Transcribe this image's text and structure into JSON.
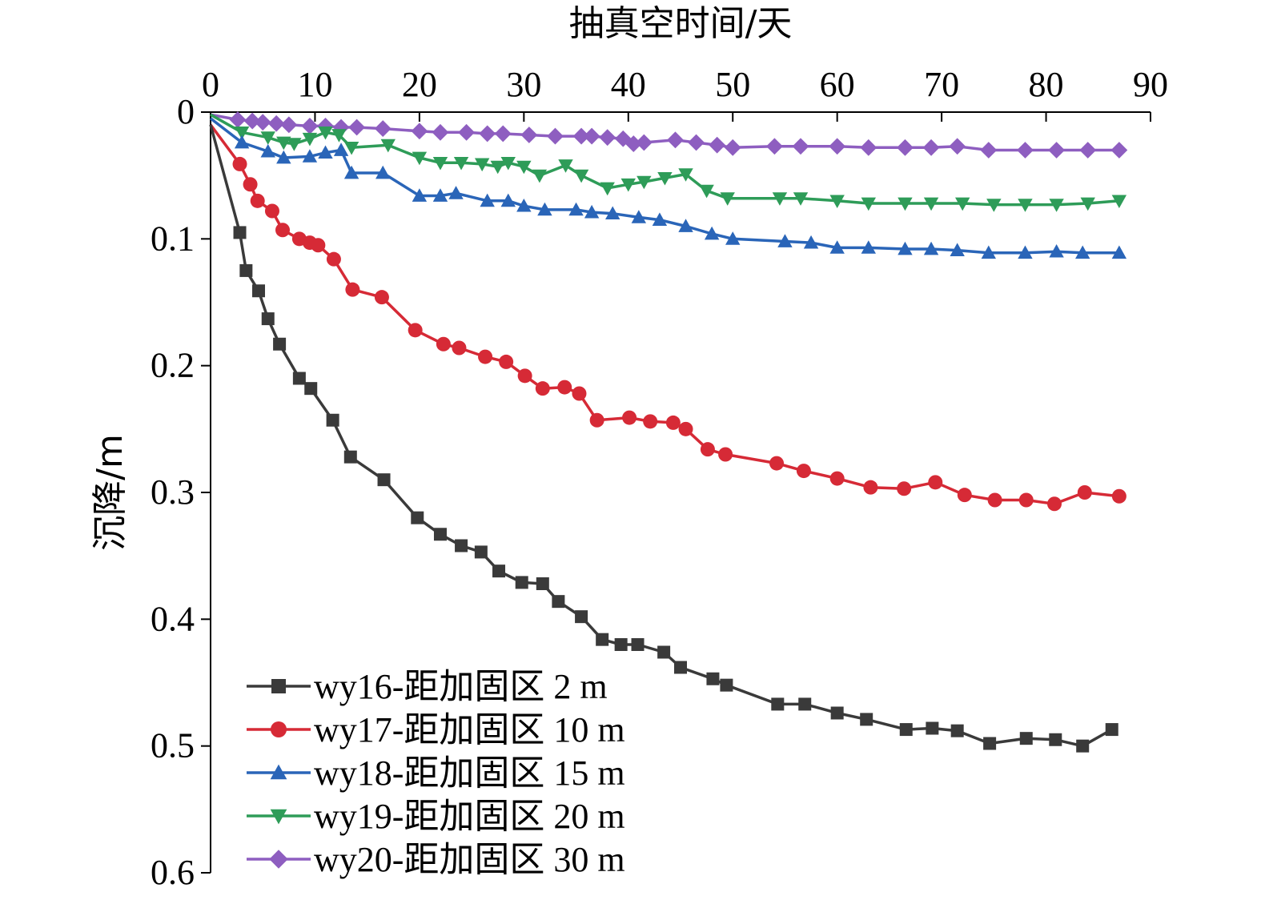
{
  "chart_data": {
    "type": "line",
    "xlabel": "抽真空时间/天",
    "ylabel": "沉降/m",
    "xlim": [
      0,
      90
    ],
    "ylim": [
      0,
      0.6
    ],
    "x_ticks": [
      0,
      10,
      20,
      30,
      40,
      50,
      60,
      70,
      80,
      90
    ],
    "y_ticks": [
      0,
      0.1,
      0.2,
      0.3,
      0.4,
      0.5,
      0.6
    ],
    "y_tick_labels": [
      "0",
      "0.1",
      "0.2",
      "0.3",
      "0.4",
      "0.5",
      "0.6"
    ],
    "x_axis_position": "top",
    "y_axis_inverted": true,
    "grid": false,
    "legend_position": "bottom-left",
    "series": [
      {
        "name": "wy16-距加固区 2 m",
        "color": "#3a3a3a",
        "marker": "square",
        "points": [
          [
            0,
            0.01
          ],
          [
            2.8,
            0.095
          ],
          [
            3.4,
            0.125
          ],
          [
            4.6,
            0.141
          ],
          [
            5.5,
            0.163
          ],
          [
            6.6,
            0.183
          ],
          [
            8.5,
            0.21
          ],
          [
            9.6,
            0.218
          ],
          [
            11.7,
            0.243
          ],
          [
            13.4,
            0.272
          ],
          [
            16.6,
            0.29
          ],
          [
            19.8,
            0.32
          ],
          [
            22,
            0.333
          ],
          [
            24,
            0.342
          ],
          [
            25.9,
            0.347
          ],
          [
            27.6,
            0.362
          ],
          [
            29.8,
            0.371
          ],
          [
            31.8,
            0.372
          ],
          [
            33.3,
            0.386
          ],
          [
            35.5,
            0.398
          ],
          [
            37.5,
            0.416
          ],
          [
            39.3,
            0.42
          ],
          [
            40.9,
            0.42
          ],
          [
            43.4,
            0.426
          ],
          [
            45,
            0.438
          ],
          [
            48.1,
            0.447
          ],
          [
            49.4,
            0.452
          ],
          [
            54.3,
            0.467
          ],
          [
            56.9,
            0.467
          ],
          [
            60,
            0.474
          ],
          [
            62.8,
            0.479
          ],
          [
            66.6,
            0.487
          ],
          [
            69.1,
            0.486
          ],
          [
            71.5,
            0.488
          ],
          [
            74.6,
            0.498
          ],
          [
            78.1,
            0.494
          ],
          [
            80.9,
            0.495
          ],
          [
            83.5,
            0.5
          ],
          [
            86.3,
            0.487
          ]
        ]
      },
      {
        "name": "wy17-距加固区 10 m",
        "color": "#d62a36",
        "marker": "circle",
        "points": [
          [
            0,
            0.01
          ],
          [
            2.8,
            0.041
          ],
          [
            3.8,
            0.057
          ],
          [
            4.5,
            0.07
          ],
          [
            5.9,
            0.078
          ],
          [
            6.9,
            0.093
          ],
          [
            8.5,
            0.1
          ],
          [
            9.5,
            0.103
          ],
          [
            10.3,
            0.105
          ],
          [
            11.8,
            0.116
          ],
          [
            13.6,
            0.14
          ],
          [
            16.4,
            0.146
          ],
          [
            19.6,
            0.172
          ],
          [
            22.3,
            0.183
          ],
          [
            23.8,
            0.186
          ],
          [
            26.3,
            0.193
          ],
          [
            28.3,
            0.197
          ],
          [
            30.1,
            0.208
          ],
          [
            31.8,
            0.218
          ],
          [
            33.9,
            0.217
          ],
          [
            35.3,
            0.222
          ],
          [
            37,
            0.243
          ],
          [
            40.1,
            0.241
          ],
          [
            42.1,
            0.244
          ],
          [
            44.3,
            0.245
          ],
          [
            45.5,
            0.25
          ],
          [
            47.6,
            0.266
          ],
          [
            49.3,
            0.27
          ],
          [
            54.2,
            0.277
          ],
          [
            56.8,
            0.283
          ],
          [
            60,
            0.289
          ],
          [
            63.2,
            0.296
          ],
          [
            66.4,
            0.297
          ],
          [
            69.4,
            0.292
          ],
          [
            72.2,
            0.302
          ],
          [
            75.1,
            0.306
          ],
          [
            78.1,
            0.306
          ],
          [
            80.8,
            0.309
          ],
          [
            83.7,
            0.3
          ],
          [
            87,
            0.303
          ]
        ]
      },
      {
        "name": "wy18-距加固区 15 m",
        "color": "#2a65b8",
        "marker": "triangle-up",
        "points": [
          [
            0,
            0.005
          ],
          [
            3,
            0.024
          ],
          [
            5.5,
            0.031
          ],
          [
            7,
            0.036
          ],
          [
            9.5,
            0.035
          ],
          [
            11,
            0.032
          ],
          [
            12.5,
            0.03
          ],
          [
            13.5,
            0.048
          ],
          [
            16.5,
            0.048
          ],
          [
            20,
            0.066
          ],
          [
            22,
            0.066
          ],
          [
            23.5,
            0.064
          ],
          [
            26.5,
            0.07
          ],
          [
            28.5,
            0.07
          ],
          [
            30,
            0.074
          ],
          [
            32,
            0.077
          ],
          [
            35,
            0.077
          ],
          [
            36.5,
            0.079
          ],
          [
            38.5,
            0.08
          ],
          [
            41,
            0.083
          ],
          [
            43,
            0.085
          ],
          [
            45.5,
            0.09
          ],
          [
            48,
            0.096
          ],
          [
            50,
            0.1
          ],
          [
            55,
            0.102
          ],
          [
            57.5,
            0.103
          ],
          [
            60,
            0.107
          ],
          [
            63,
            0.107
          ],
          [
            66.5,
            0.108
          ],
          [
            69,
            0.108
          ],
          [
            71.5,
            0.109
          ],
          [
            74.5,
            0.111
          ],
          [
            78,
            0.111
          ],
          [
            81,
            0.11
          ],
          [
            83.5,
            0.111
          ],
          [
            87,
            0.111
          ]
        ]
      },
      {
        "name": "wy19-距加固区 20 m",
        "color": "#2e9c58",
        "marker": "triangle-down",
        "points": [
          [
            0,
            0.002
          ],
          [
            3,
            0.016
          ],
          [
            5.5,
            0.02
          ],
          [
            7,
            0.024
          ],
          [
            8,
            0.025
          ],
          [
            9.5,
            0.021
          ],
          [
            11,
            0.016
          ],
          [
            12.3,
            0.018
          ],
          [
            13.5,
            0.028
          ],
          [
            17,
            0.026
          ],
          [
            20,
            0.036
          ],
          [
            22,
            0.04
          ],
          [
            24,
            0.04
          ],
          [
            26,
            0.041
          ],
          [
            27.5,
            0.043
          ],
          [
            28.5,
            0.04
          ],
          [
            30,
            0.043
          ],
          [
            31.5,
            0.05
          ],
          [
            34,
            0.042
          ],
          [
            35.5,
            0.05
          ],
          [
            38,
            0.06
          ],
          [
            40,
            0.057
          ],
          [
            41.5,
            0.055
          ],
          [
            43.5,
            0.052
          ],
          [
            45.5,
            0.049
          ],
          [
            47.5,
            0.062
          ],
          [
            49.5,
            0.068
          ],
          [
            54.5,
            0.068
          ],
          [
            56.5,
            0.068
          ],
          [
            60,
            0.07
          ],
          [
            63,
            0.072
          ],
          [
            66.5,
            0.072
          ],
          [
            69,
            0.072
          ],
          [
            72,
            0.072
          ],
          [
            75,
            0.073
          ],
          [
            78,
            0.073
          ],
          [
            81,
            0.073
          ],
          [
            84,
            0.072
          ],
          [
            87,
            0.07
          ]
        ]
      },
      {
        "name": "wy20-距加固区 30 m",
        "color": "#8e5ec0",
        "marker": "diamond",
        "points": [
          [
            0,
            0.002
          ],
          [
            2.6,
            0.006
          ],
          [
            4,
            0.007
          ],
          [
            5,
            0.008
          ],
          [
            6.3,
            0.009
          ],
          [
            7.5,
            0.01
          ],
          [
            9.5,
            0.011
          ],
          [
            11,
            0.011
          ],
          [
            12.5,
            0.012
          ],
          [
            14,
            0.012
          ],
          [
            16.5,
            0.013
          ],
          [
            20,
            0.015
          ],
          [
            22,
            0.016
          ],
          [
            24.5,
            0.016
          ],
          [
            26.5,
            0.017
          ],
          [
            28,
            0.017
          ],
          [
            30.5,
            0.018
          ],
          [
            33,
            0.019
          ],
          [
            35.5,
            0.019
          ],
          [
            36.5,
            0.019
          ],
          [
            38,
            0.02
          ],
          [
            39.5,
            0.021
          ],
          [
            40.5,
            0.025
          ],
          [
            41.5,
            0.024
          ],
          [
            44.5,
            0.022
          ],
          [
            46.5,
            0.024
          ],
          [
            48.5,
            0.026
          ],
          [
            50,
            0.028
          ],
          [
            54,
            0.027
          ],
          [
            56.5,
            0.027
          ],
          [
            60,
            0.027
          ],
          [
            63,
            0.028
          ],
          [
            66.5,
            0.028
          ],
          [
            69,
            0.028
          ],
          [
            71.5,
            0.027
          ],
          [
            74.5,
            0.03
          ],
          [
            78,
            0.03
          ],
          [
            81,
            0.03
          ],
          [
            84,
            0.03
          ],
          [
            87,
            0.03
          ]
        ]
      }
    ]
  }
}
